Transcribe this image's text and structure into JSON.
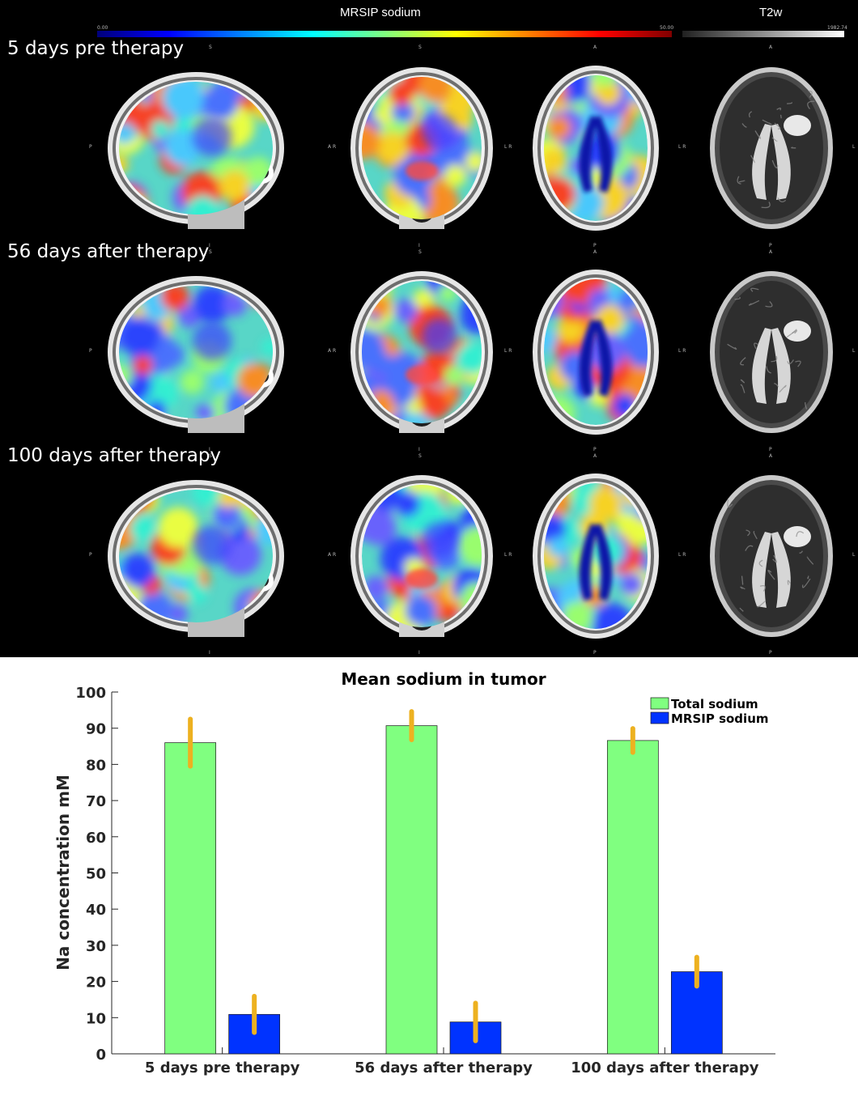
{
  "figure": {
    "colorbar_sodium": {
      "title": "MRSIP sodium",
      "min_label": "0.00",
      "max_label": "50.00",
      "colors": [
        "#00007a",
        "#0000ff",
        "#0080ff",
        "#00ffff",
        "#80ff80",
        "#ffff00",
        "#ff8000",
        "#ff0000",
        "#800000"
      ]
    },
    "colorbar_t2w": {
      "title": "T2w",
      "max_label": "1982.74",
      "colors": [
        "#202020",
        "#ffffff"
      ]
    },
    "orientation_labels": {
      "superior": "S",
      "inferior": "I",
      "anterior": "A",
      "posterior": "P",
      "right": "R",
      "left": "L",
      "lr": "L R",
      "ar": "A R"
    },
    "rows": [
      {
        "label": "5 days pre therapy"
      },
      {
        "label": "56 days after therapy"
      },
      {
        "label": "100 days after therapy"
      }
    ]
  },
  "chart_data": {
    "type": "bar",
    "title": "Mean sodium in tumor",
    "ylabel": "Na concentration mM",
    "xlabel": "",
    "ylim": [
      0,
      100
    ],
    "yticks": [
      0,
      10,
      20,
      30,
      40,
      50,
      60,
      70,
      80,
      90,
      100
    ],
    "categories": [
      "5 days pre therapy",
      "56 days after therapy",
      "100 days after therapy"
    ],
    "series": [
      {
        "name": "Total sodium",
        "color": "#80ff80",
        "values": [
          86,
          90.7,
          86.6
        ],
        "error": [
          6.5,
          3.9,
          3.3
        ]
      },
      {
        "name": "MRSIP sodium",
        "color": "#0033ff",
        "values": [
          10.9,
          8.8,
          22.7
        ],
        "error": [
          5.0,
          5.2,
          4.0
        ]
      }
    ],
    "error_bar_color": "#edb120",
    "legend_position": "top-right",
    "grid": false
  }
}
